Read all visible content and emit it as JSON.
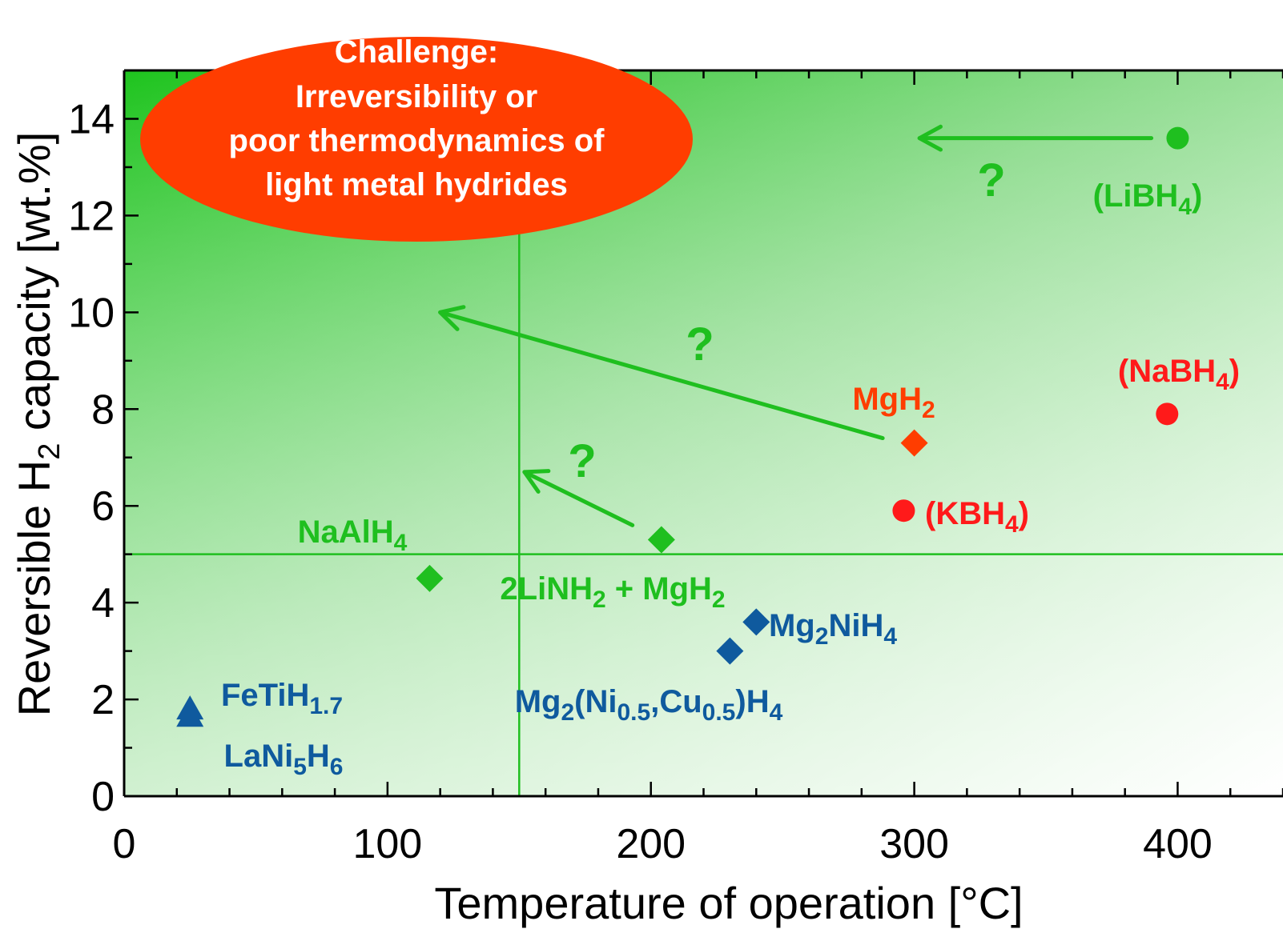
{
  "chart_data": {
    "type": "scatter",
    "xlabel": "Temperature of operation [°C]",
    "ylabel_parts": [
      "Reversible H",
      "2",
      " capacity [wt.%]"
    ],
    "xlim": [
      0,
      440
    ],
    "ylim": [
      0,
      15
    ],
    "xticks": [
      0,
      100,
      200,
      300,
      400
    ],
    "yticks": [
      0,
      2,
      4,
      6,
      8,
      10,
      12,
      14
    ],
    "target_lines": {
      "x": 150,
      "y": 5
    },
    "callout_lines": [
      "Challenge:",
      "Irreversibility or",
      "poor thermodynamics of",
      "light metal hydrides"
    ],
    "colors": {
      "green": "#1fbf1f",
      "red": "#ff1a1a",
      "orange": "#ff3d00",
      "blue": "#0f5a9e",
      "callout": "#ff3d00",
      "target_line": "#1fbf1f"
    },
    "points": [
      {
        "label_parts": [
          [
            "(LiBH",
            "n"
          ],
          [
            "4",
            "s"
          ],
          [
            ")",
            "n"
          ]
        ],
        "x": 400,
        "y": 13.6,
        "marker": "circle",
        "color": "green"
      },
      {
        "label_parts": [
          [
            "(NaBH",
            "n"
          ],
          [
            "4",
            "s"
          ],
          [
            ")",
            "n"
          ]
        ],
        "x": 396,
        "y": 7.9,
        "marker": "circle",
        "color": "red"
      },
      {
        "label_parts": [
          [
            "(KBH",
            "n"
          ],
          [
            "4",
            "s"
          ],
          [
            ")",
            "n"
          ]
        ],
        "x": 296,
        "y": 5.9,
        "marker": "circle",
        "color": "red"
      },
      {
        "label_parts": [
          [
            "MgH",
            "n"
          ],
          [
            "2",
            "s"
          ]
        ],
        "x": 300,
        "y": 7.3,
        "marker": "diamond",
        "color": "orange"
      },
      {
        "label_parts": [
          [
            "NaAlH",
            "n"
          ],
          [
            "4",
            "s"
          ]
        ],
        "x": 116,
        "y": 4.5,
        "marker": "diamond",
        "color": "green"
      },
      {
        "label_parts": [
          [
            "2LiNH",
            "n"
          ],
          [
            "2",
            "s"
          ],
          [
            " + MgH",
            "n"
          ],
          [
            "2",
            "s"
          ]
        ],
        "x": 204,
        "y": 5.3,
        "marker": "diamond",
        "color": "green"
      },
      {
        "label_parts": [
          [
            "Mg",
            "n"
          ],
          [
            "2",
            "s"
          ],
          [
            "NiH",
            "n"
          ],
          [
            "4",
            "s"
          ]
        ],
        "x": 240,
        "y": 3.6,
        "marker": "diamond",
        "color": "blue"
      },
      {
        "label_parts": [
          [
            "Mg",
            "n"
          ],
          [
            "2",
            "s"
          ],
          [
            "(Ni",
            "n"
          ],
          [
            "0.5",
            "s"
          ],
          [
            ",Cu",
            "n"
          ],
          [
            "0.5",
            "s"
          ],
          [
            ")H",
            "n"
          ],
          [
            "4",
            "s"
          ]
        ],
        "x": 230,
        "y": 3.0,
        "marker": "diamond",
        "color": "blue"
      },
      {
        "label_parts": [
          [
            "FeTiH",
            "n"
          ],
          [
            "1.7",
            "s"
          ]
        ],
        "x": 25,
        "y": 1.8,
        "marker": "triangle",
        "color": "blue"
      },
      {
        "label_parts": [
          [
            "LaNi",
            "n"
          ],
          [
            "5",
            "s"
          ],
          [
            "H",
            "n"
          ],
          [
            "6",
            "s"
          ]
        ],
        "x": 25,
        "y": 1.65,
        "marker": "triangle",
        "color": "blue"
      }
    ],
    "arrows": [
      {
        "from": [
          390,
          13.6
        ],
        "to": [
          302,
          13.6
        ],
        "label": "?"
      },
      {
        "from": [
          288,
          7.4
        ],
        "to": [
          120,
          10.0
        ],
        "label": "?"
      },
      {
        "from": [
          193,
          5.6
        ],
        "to": [
          152,
          6.7
        ],
        "label": "?"
      }
    ]
  }
}
